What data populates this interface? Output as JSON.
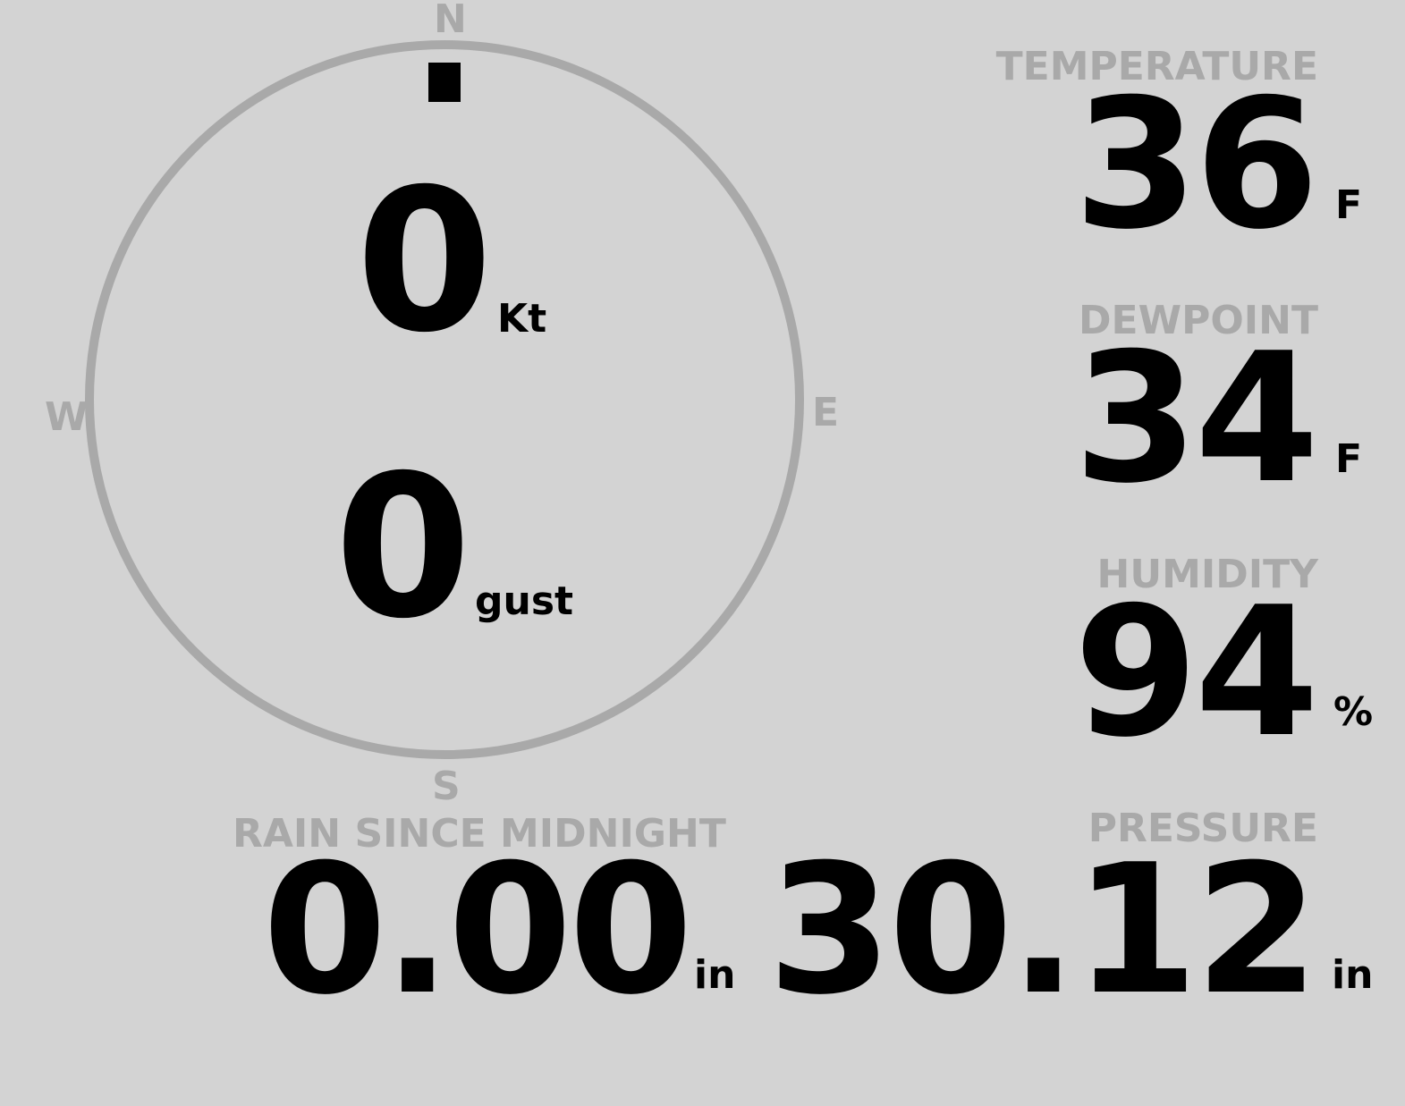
{
  "colors": {
    "background": "#d3d3d3",
    "label": "#a9a9a9",
    "value": "#000000"
  },
  "wind": {
    "compass": {
      "north": "N",
      "east": "E",
      "south": "S",
      "west": "W",
      "direction_deg": 0
    },
    "speed": {
      "value": "0",
      "unit": "Kt"
    },
    "gust": {
      "value": "0",
      "unit": "gust"
    }
  },
  "temperature": {
    "label": "TEMPERATURE",
    "value": "36",
    "unit": "F"
  },
  "dewpoint": {
    "label": "DEWPOINT",
    "value": "34",
    "unit": "F"
  },
  "humidity": {
    "label": "HUMIDITY",
    "value": "94",
    "unit": "%"
  },
  "rain": {
    "label": "RAIN SINCE MIDNIGHT",
    "value": "0.00",
    "unit": "in"
  },
  "pressure": {
    "label": "PRESSURE",
    "value": "30.12",
    "unit": "in"
  }
}
